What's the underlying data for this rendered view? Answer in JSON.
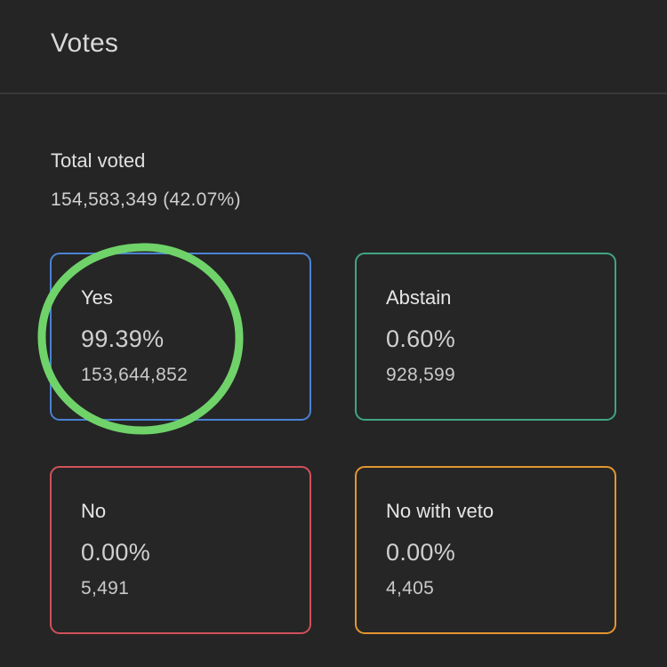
{
  "header": {
    "title": "Votes"
  },
  "summary": {
    "total_label": "Total voted",
    "total_value": "154,583,349 (42.07%)"
  },
  "options": [
    {
      "label": "Yes",
      "percent": "99.39%",
      "count": "153,644,852",
      "color": "#4a82d4"
    },
    {
      "label": "Abstain",
      "percent": "0.60%",
      "count": "928,599",
      "color": "#3fa584"
    },
    {
      "label": "No",
      "percent": "0.00%",
      "count": "5,491",
      "color": "#d1505a"
    },
    {
      "label": "No with veto",
      "percent": "0.00%",
      "count": "4,405",
      "color": "#e3962e"
    }
  ],
  "annotation": {
    "type": "hand-drawn-circle",
    "target": "Yes",
    "color": "#6fd36a"
  }
}
